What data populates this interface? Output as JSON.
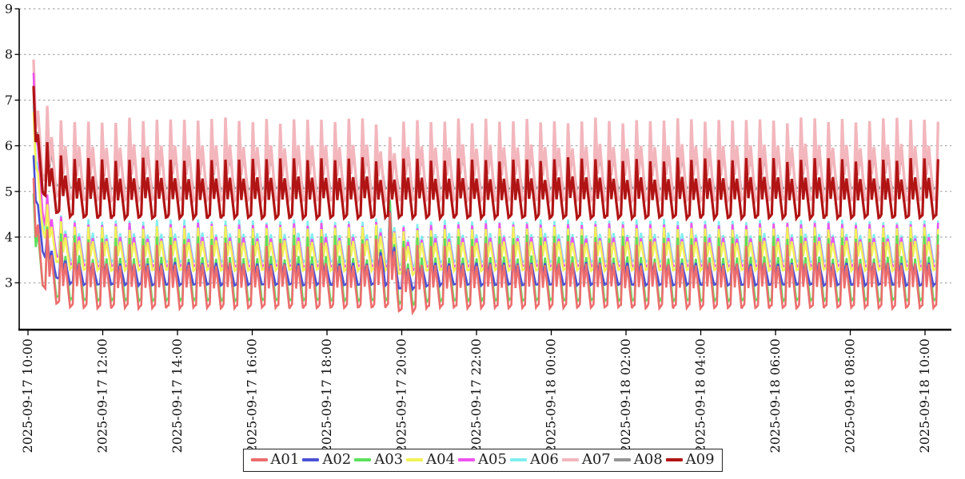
{
  "chart_data": {
    "type": "line",
    "title": "",
    "x_axis": {
      "start": "2025-09-17 10:00",
      "end": "2025-09-18 10:00",
      "tick_interval_hours": 2,
      "tick_labels": [
        "2025-09-17 10:00",
        "2025-09-17 12:00",
        "2025-09-17 14:00",
        "2025-09-17 16:00",
        "2025-09-17 18:00",
        "2025-09-17 20:00",
        "2025-09-17 22:00",
        "2025-09-18 00:00",
        "2025-09-18 02:00",
        "2025-09-18 04:00",
        "2025-09-18 06:00",
        "2025-09-18 08:00",
        "2025-09-18 10:00"
      ]
    },
    "y_axis": {
      "min": 2,
      "max": 9,
      "ticks": [
        3,
        4,
        5,
        6,
        7,
        8,
        9
      ],
      "grid": "dashed"
    },
    "duration_minutes": 1452,
    "cycle_period_minutes": 22,
    "cycle_shape": [
      [
        0,
        0.05
      ],
      [
        0.14,
        1.0
      ],
      [
        0.3,
        0.32
      ],
      [
        0.46,
        0.68
      ],
      [
        0.8,
        0.0
      ],
      [
        1.0,
        0.05
      ]
    ],
    "anomaly": {
      "time_minutes": 570,
      "sigma_minutes": 9,
      "description": "spike in low group near 2025-09-17 19:40"
    },
    "start_transient": {
      "decay_tau_minutes": 14,
      "description": "all series start high and decay to steady oscillation"
    },
    "series": [
      {
        "name": "A01",
        "color": "#ed6d6d",
        "min": 2.45,
        "max": 3.85,
        "start": 5.25,
        "width": 2.6,
        "group": "low",
        "anomaly_boost": 0.7
      },
      {
        "name": "A02",
        "color": "#4a52d4",
        "min": 2.95,
        "max": 3.65,
        "start": 5.75,
        "width": 2.6,
        "group": "low",
        "anomaly_boost": 0.95
      },
      {
        "name": "A03",
        "color": "#5ce05c",
        "min": 2.6,
        "max": 4.0,
        "start": 4.95,
        "width": 2.6,
        "group": "low",
        "anomaly_boost": 0.85
      },
      {
        "name": "A04",
        "color": "#f2f258",
        "min": 3.27,
        "max": 4.2,
        "start": 6.75,
        "width": 2.6,
        "group": "low",
        "anomaly_boost": 0.5
      },
      {
        "name": "A05",
        "color": "#ee52ee",
        "min": 3.35,
        "max": 4.28,
        "start": 7.6,
        "width": 2.6,
        "group": "low",
        "anomaly_boost": 0.47
      },
      {
        "name": "A06",
        "color": "#80eeee",
        "min": 3.45,
        "max": 4.36,
        "start": 6.85,
        "width": 2.6,
        "group": "low",
        "anomaly_boost": 0.5
      },
      {
        "name": "A07",
        "color": "#f2b6bc",
        "min": 4.8,
        "max": 6.55,
        "start": 7.9,
        "width": 3.4,
        "group": "high",
        "anomaly_boost": -0.35
      },
      {
        "name": "A08",
        "color": "#949494",
        "min": 5.05,
        "max": 6.08,
        "start": 7.0,
        "width": 2.3,
        "group": "high",
        "anomaly_boost": 0.15
      },
      {
        "name": "A09",
        "color": "#b11414",
        "min": 4.42,
        "max": 5.7,
        "start": 7.3,
        "width": 3.2,
        "group": "high",
        "anomaly_boost": 0.0
      }
    ],
    "draw_order": [
      "A08",
      "A07",
      "A06",
      "A05",
      "A04",
      "A03",
      "A02",
      "A01",
      "A09"
    ],
    "legend": {
      "position": "bottom-center",
      "entries": [
        "A01",
        "A02",
        "A03",
        "A04",
        "A05",
        "A06",
        "A07",
        "A08",
        "A09"
      ]
    }
  },
  "colors": {
    "background": "#ffffff",
    "axis": "#000000",
    "grid": "#8a8a8a",
    "text": "#111111"
  }
}
